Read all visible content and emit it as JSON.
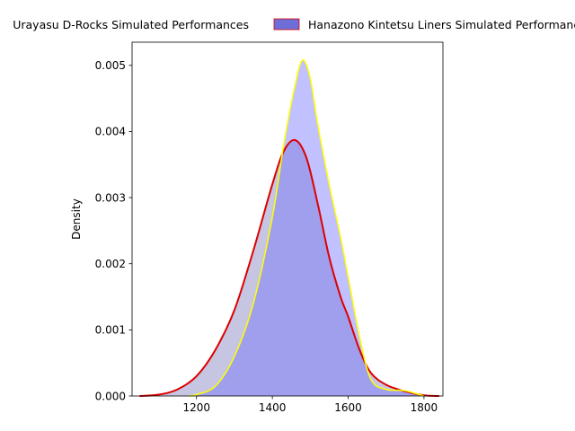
{
  "chart_data": {
    "type": "area",
    "xlabel": "",
    "ylabel": "Density",
    "xlim": [
      1030,
      1850
    ],
    "ylim": [
      0,
      0.00535
    ],
    "x_ticks": [
      1200,
      1400,
      1600,
      1800
    ],
    "x_tick_labels": [
      "1200",
      "1400",
      "1600",
      "1800"
    ],
    "y_ticks": [
      0,
      0.001,
      0.002,
      0.003,
      0.004,
      0.005
    ],
    "y_tick_labels": [
      "0.000",
      "0.001",
      "0.002",
      "0.003",
      "0.004",
      "0.005"
    ],
    "grid": false,
    "legend_position": "top (spills beyond plot width)",
    "series": [
      {
        "name": "Urayasu D-Rocks Simulated Performances",
        "stroke": "#dd0000",
        "fill": "#8080c0",
        "fill_opacity": 0.45,
        "x": [
          1050,
          1100,
          1150,
          1200,
          1250,
          1300,
          1350,
          1400,
          1430,
          1460,
          1490,
          1520,
          1550,
          1580,
          1600,
          1630,
          1660,
          1700,
          1750,
          1800,
          1840
        ],
        "y": [
          0.0,
          2e-05,
          0.0001,
          0.0003,
          0.0007,
          0.0013,
          0.0022,
          0.0032,
          0.0037,
          0.00387,
          0.0036,
          0.0029,
          0.0021,
          0.0015,
          0.0012,
          0.0007,
          0.00035,
          0.00017,
          7e-05,
          1e-05,
          0.0
        ]
      },
      {
        "name": "Hanazono Kintetsu Liners Simulated Performances",
        "stroke": "#ffff00",
        "fill": "#6464ff",
        "fill_opacity": 0.4,
        "x": [
          1180,
          1200,
          1250,
          1300,
          1350,
          1400,
          1430,
          1460,
          1480,
          1500,
          1520,
          1550,
          1580,
          1600,
          1630,
          1660,
          1700,
          1750,
          1800
        ],
        "y": [
          0.0,
          2e-05,
          0.00015,
          0.0006,
          0.0014,
          0.0027,
          0.0038,
          0.0047,
          0.00508,
          0.0048,
          0.0041,
          0.0032,
          0.0024,
          0.0018,
          0.0009,
          0.00025,
          0.0001,
          8e-05,
          0.0
        ]
      }
    ]
  }
}
